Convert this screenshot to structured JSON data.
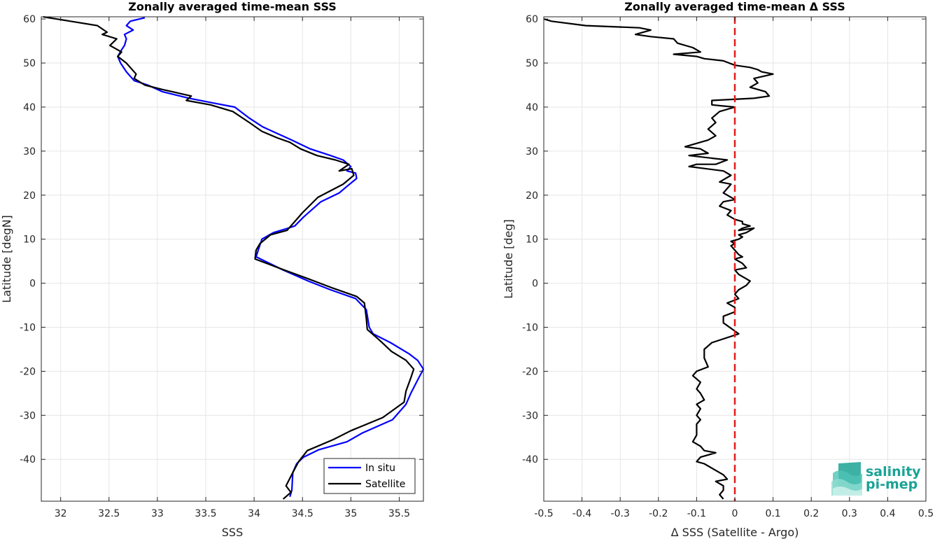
{
  "chart_data": [
    {
      "type": "line",
      "title": "Zonally averaged time-mean SSS",
      "xlabel": "SSS",
      "ylabel": "Latitude [degN]",
      "xlim": [
        31.8,
        35.75
      ],
      "ylim": [
        -49.5,
        60.5
      ],
      "xticks": [
        32,
        32.5,
        33,
        33.5,
        34,
        34.5,
        35,
        35.5
      ],
      "yticks": [
        -40,
        -30,
        -20,
        -10,
        0,
        10,
        20,
        30,
        40,
        50,
        60
      ],
      "grid": true,
      "legend_position": "bottom-right",
      "series": [
        {
          "name": "In situ",
          "color": "#0000ff",
          "x": [
            32.87,
            32.72,
            32.68,
            32.75,
            32.66,
            32.68,
            32.66,
            32.63,
            32.59,
            32.62,
            32.68,
            32.76,
            32.9,
            33.05,
            33.33,
            33.56,
            33.8,
            33.95,
            34.09,
            34.24,
            34.39,
            34.58,
            34.79,
            34.92,
            35.0,
            34.96,
            35.05,
            35.06,
            34.96,
            34.88,
            34.69,
            34.51,
            34.42,
            34.35,
            34.2,
            34.08,
            34.05,
            34.02,
            34.3,
            34.56,
            34.79,
            35.05,
            35.16,
            35.19,
            35.23,
            35.41,
            35.6,
            35.69,
            35.75,
            35.69,
            35.62,
            35.57,
            35.43,
            35.12,
            34.96,
            34.67,
            34.51,
            34.44,
            34.4,
            34.39,
            34.37
          ],
          "y": [
            60.3,
            59.5,
            58.5,
            57.5,
            56.5,
            55.5,
            54.0,
            53.0,
            51.5,
            50.0,
            48.0,
            46.0,
            45.0,
            43.5,
            42.0,
            41.0,
            40.0,
            37.5,
            35.5,
            34.0,
            32.5,
            30.5,
            29.0,
            28.0,
            26.5,
            25.5,
            25.0,
            23.8,
            22.0,
            20.5,
            18.5,
            15.0,
            13.0,
            12.5,
            11.5,
            10.0,
            8.0,
            6.0,
            3.0,
            0.5,
            -1.5,
            -3.5,
            -6.0,
            -10.0,
            -11.5,
            -13.5,
            -16.0,
            -17.5,
            -19.5,
            -22.0,
            -25.0,
            -27.5,
            -31.0,
            -34.0,
            -36.0,
            -37.8,
            -39.5,
            -41.0,
            -43.0,
            -47.0,
            -48.5
          ]
        },
        {
          "name": "Satellite",
          "color": "#000000",
          "x": [
            31.82,
            32.1,
            32.38,
            32.48,
            32.43,
            32.58,
            32.51,
            32.63,
            32.59,
            32.68,
            32.78,
            32.76,
            32.87,
            33.05,
            33.35,
            33.3,
            33.55,
            33.78,
            33.95,
            34.08,
            34.24,
            34.37,
            34.48,
            34.65,
            34.84,
            34.98,
            34.88,
            35.01,
            35.03,
            34.92,
            34.66,
            34.5,
            34.42,
            34.34,
            34.17,
            34.06,
            34.02,
            34.01,
            34.31,
            34.56,
            34.8,
            35.06,
            35.14,
            35.16,
            35.17,
            35.3,
            35.42,
            35.57,
            35.65,
            35.62,
            35.57,
            35.55,
            35.33,
            35.0,
            34.82,
            34.55,
            34.46,
            34.4,
            34.33,
            34.38,
            34.3
          ],
          "y": [
            60.5,
            59.5,
            58.5,
            57.0,
            56.5,
            55.5,
            54.0,
            52.5,
            51.5,
            50.0,
            47.5,
            46.5,
            45.0,
            44.0,
            42.5,
            41.5,
            40.5,
            39.0,
            36.5,
            34.5,
            33.0,
            32.0,
            30.5,
            29.0,
            28.0,
            27.0,
            25.5,
            26.0,
            24.5,
            22.5,
            19.5,
            16.0,
            14.0,
            12.0,
            11.0,
            9.0,
            7.5,
            5.5,
            3.0,
            1.0,
            -1.0,
            -3.0,
            -4.5,
            -8.0,
            -10.5,
            -13.0,
            -15.5,
            -17.5,
            -19.5,
            -21.5,
            -24.5,
            -27.0,
            -30.5,
            -33.5,
            -35.5,
            -38.0,
            -40.5,
            -43.0,
            -46.0,
            -47.5,
            -49.0
          ]
        }
      ]
    },
    {
      "type": "line",
      "title": "Zonally averaged time-mean Δ SSS",
      "xlabel": "Δ SSS (Satellite - Argo)",
      "ylabel": "Latitude [deg]",
      "xlim": [
        -0.5,
        0.5
      ],
      "ylim": [
        -49.5,
        60.5
      ],
      "xticks": [
        -0.5,
        -0.4,
        -0.3,
        -0.2,
        -0.1,
        0,
        0.1,
        0.2,
        0.3,
        0.4,
        0.5
      ],
      "yticks": [
        -40,
        -30,
        -20,
        -10,
        0,
        10,
        20,
        30,
        40,
        50,
        60
      ],
      "grid": true,
      "series": [
        {
          "color": "#000000",
          "x": [
            -0.5,
            -0.48,
            -0.39,
            -0.25,
            -0.22,
            -0.26,
            -0.22,
            -0.16,
            -0.15,
            -0.11,
            -0.09,
            -0.16,
            -0.1,
            -0.08,
            -0.03,
            0.0,
            0.04,
            0.06,
            0.07,
            0.1,
            0.05,
            0.06,
            0.04,
            0.08,
            0.09,
            0.05,
            -0.06,
            -0.06,
            0.0,
            -0.04,
            -0.06,
            -0.05,
            -0.07,
            -0.05,
            -0.07,
            -0.13,
            -0.09,
            -0.07,
            -0.12,
            -0.02,
            -0.05,
            -0.1,
            -0.12,
            -0.03,
            -0.01,
            -0.04,
            -0.01,
            -0.03,
            0.0,
            -0.03,
            -0.04,
            -0.01,
            -0.02,
            -0.01,
            0.0,
            0.02,
            0.02,
            0.04,
            0.02,
            0.01,
            0.05,
            0.03,
            0.01,
            0.02,
            0.01,
            -0.01,
            0.0,
            -0.01,
            0.0,
            0.01,
            0.02,
            0.0,
            0.02,
            0.03,
            0.0,
            0.01,
            0.03,
            0.04,
            0.03,
            0.01,
            0.0,
            0.01,
            -0.02,
            0.0,
            0.0,
            -0.03,
            -0.03,
            0.01,
            -0.06,
            -0.08,
            -0.08,
            -0.07,
            -0.1,
            -0.11,
            -0.09,
            -0.1,
            -0.09,
            -0.08,
            -0.1,
            -0.09,
            -0.1,
            -0.09,
            -0.1,
            -0.1,
            -0.1,
            -0.11,
            -0.09,
            -0.08,
            -0.05,
            -0.09,
            -0.1,
            -0.08,
            -0.06,
            -0.03,
            -0.02,
            -0.05,
            -0.03,
            -0.03,
            -0.04,
            -0.03
          ],
          "y": [
            60.0,
            59.5,
            58.5,
            58.0,
            57.5,
            56.5,
            56.0,
            55.5,
            54.5,
            53.5,
            52.5,
            52.0,
            51.5,
            51.0,
            50.5,
            49.5,
            49.0,
            48.5,
            48.0,
            47.5,
            46.5,
            45.5,
            44.5,
            43.5,
            42.5,
            42.0,
            41.5,
            40.5,
            40.0,
            39.0,
            37.5,
            36.5,
            35.0,
            33.5,
            32.5,
            31.0,
            30.5,
            29.5,
            29.0,
            28.0,
            27.0,
            27.0,
            26.5,
            25.5,
            24.5,
            23.0,
            22.5,
            20.5,
            19.0,
            18.5,
            17.5,
            16.5,
            15.5,
            15.0,
            14.5,
            14.0,
            13.5,
            13.0,
            12.5,
            12.0,
            12.5,
            11.5,
            11.0,
            10.5,
            10.0,
            9.5,
            9.0,
            8.5,
            7.5,
            6.5,
            6.0,
            5.5,
            4.5,
            3.5,
            3.0,
            2.0,
            1.0,
            0.5,
            -0.5,
            -1.5,
            -2.5,
            -3.5,
            -4.5,
            -5.5,
            -6.5,
            -7.5,
            -9.0,
            -11.5,
            -13.5,
            -15.0,
            -17.0,
            -19.0,
            -20.0,
            -21.0,
            -22.5,
            -24.0,
            -25.0,
            -26.5,
            -27.5,
            -28.5,
            -30.0,
            -31.0,
            -32.0,
            -33.0,
            -34.5,
            -36.0,
            -37.0,
            -38.0,
            -38.5,
            -39.5,
            -40.5,
            -41.0,
            -42.0,
            -43.5,
            -44.5,
            -45.0,
            -46.0,
            -47.0,
            -48.0,
            -49.0
          ]
        }
      ],
      "reference_line": {
        "x": 0,
        "color": "#e51a1a",
        "style": "dashed"
      },
      "logo": {
        "line1": "salinity",
        "line2": "pi-mep",
        "color": "#1aa394"
      }
    }
  ]
}
